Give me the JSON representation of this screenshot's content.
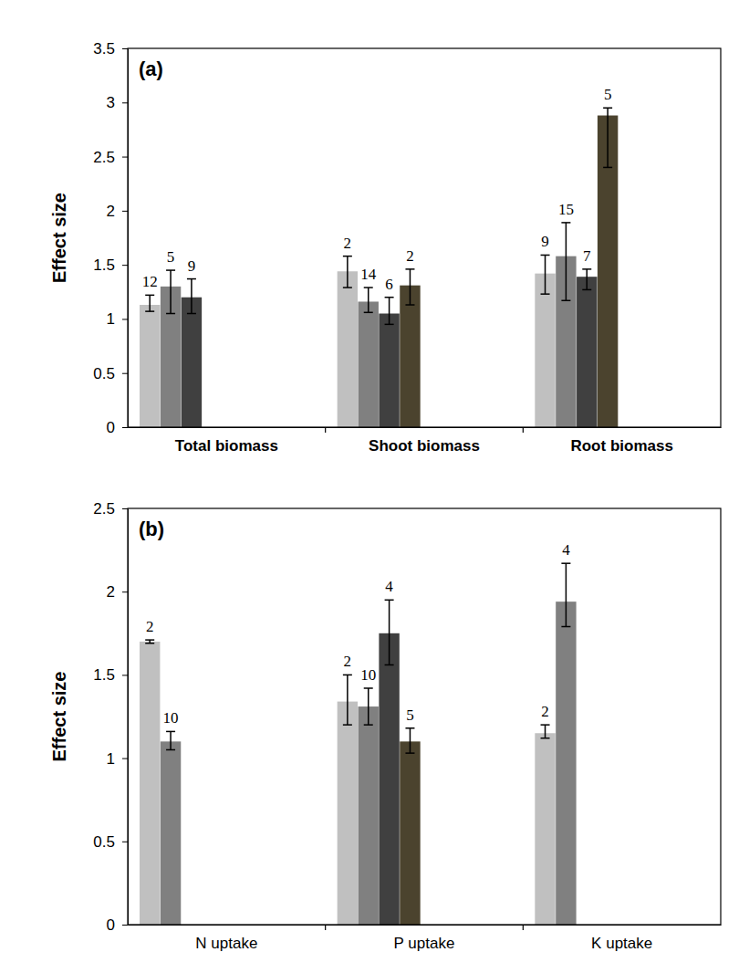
{
  "chart_data": [
    {
      "type": "bar",
      "title": "(a)",
      "ylabel": "Effect size",
      "categories": [
        "Total biomass",
        "Shoot biomass",
        "Root biomass"
      ],
      "ylim": [
        0,
        3.5
      ],
      "yticks": [
        0,
        0.5,
        1,
        1.5,
        2,
        2.5,
        3,
        3.5
      ],
      "grid": false,
      "series": [
        {
          "color": "#c0c0c0",
          "values": [
            1.13,
            1.44,
            1.42
          ],
          "error_lower": [
            1.07,
            1.29,
            1.23
          ],
          "error_upper": [
            1.22,
            1.58,
            1.59
          ],
          "n": [
            12,
            2,
            9
          ]
        },
        {
          "color": "#808080",
          "values": [
            1.3,
            1.16,
            1.58
          ],
          "error_lower": [
            1.05,
            1.06,
            1.17
          ],
          "error_upper": [
            1.45,
            1.29,
            1.89
          ],
          "n": [
            5,
            14,
            15
          ]
        },
        {
          "color": "#404040",
          "values": [
            1.2,
            1.05,
            1.39
          ],
          "error_lower": [
            1.05,
            0.95,
            1.27
          ],
          "error_upper": [
            1.37,
            1.2,
            1.46
          ],
          "n": [
            9,
            6,
            7
          ]
        },
        {
          "color": "#4b432e",
          "values": [
            null,
            1.31,
            2.88
          ],
          "error_lower": [
            null,
            1.13,
            2.4
          ],
          "error_upper": [
            null,
            1.46,
            2.95
          ],
          "n": [
            null,
            2,
            5
          ]
        }
      ]
    },
    {
      "type": "bar",
      "title": "(b)",
      "ylabel": "Effect size",
      "categories": [
        "N uptake",
        "P uptake",
        "K uptake"
      ],
      "ylim": [
        0,
        2.5
      ],
      "yticks": [
        0,
        0.5,
        1,
        1.5,
        2,
        2.5
      ],
      "grid": false,
      "series": [
        {
          "color": "#c0c0c0",
          "values": [
            1.7,
            1.34,
            1.15
          ],
          "error_lower": [
            1.69,
            1.2,
            1.12
          ],
          "error_upper": [
            1.71,
            1.5,
            1.2
          ],
          "n": [
            2,
            2,
            2
          ]
        },
        {
          "color": "#808080",
          "values": [
            1.1,
            1.31,
            1.94
          ],
          "error_lower": [
            1.05,
            1.2,
            1.79
          ],
          "error_upper": [
            1.16,
            1.42,
            2.17
          ],
          "n": [
            10,
            10,
            4
          ]
        },
        {
          "color": "#404040",
          "values": [
            null,
            1.75,
            null
          ],
          "error_lower": [
            null,
            1.56,
            null
          ],
          "error_upper": [
            null,
            1.95,
            null
          ],
          "n": [
            null,
            4,
            null
          ]
        },
        {
          "color": "#4b432e",
          "values": [
            null,
            1.1,
            null
          ],
          "error_lower": [
            null,
            1.03,
            null
          ],
          "error_upper": [
            null,
            1.18,
            null
          ],
          "n": [
            null,
            5,
            null
          ]
        }
      ]
    }
  ]
}
